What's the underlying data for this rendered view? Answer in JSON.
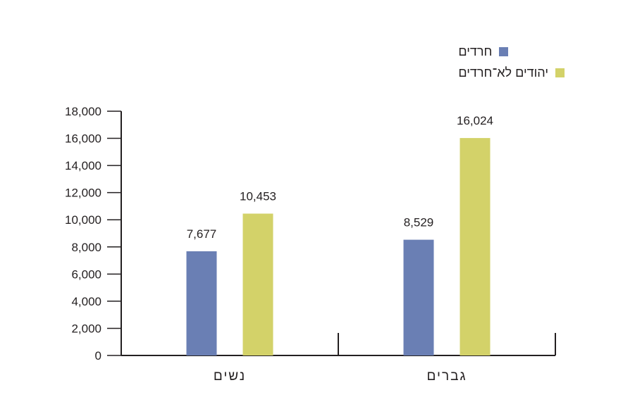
{
  "chart_data": {
    "type": "bar",
    "categories": [
      "נשים",
      "גברים"
    ],
    "series": [
      {
        "name": "חרדים",
        "color": "#6a7fb4",
        "values": [
          7677,
          8529
        ],
        "labels": [
          "7,677",
          "8,529"
        ]
      },
      {
        "name": "יהודים לא־חרדים",
        "color": "#d3d269",
        "values": [
          10453,
          16024
        ],
        "labels": [
          "10,453",
          "16,024"
        ]
      }
    ],
    "yticks": [
      "0",
      "2,000",
      "4,000",
      "6,000",
      "8,000",
      "10,000",
      "12,000",
      "14,000",
      "16,000",
      "18,000"
    ],
    "ylim": [
      0,
      18000
    ],
    "grid": false,
    "legend_position": "top-right"
  }
}
